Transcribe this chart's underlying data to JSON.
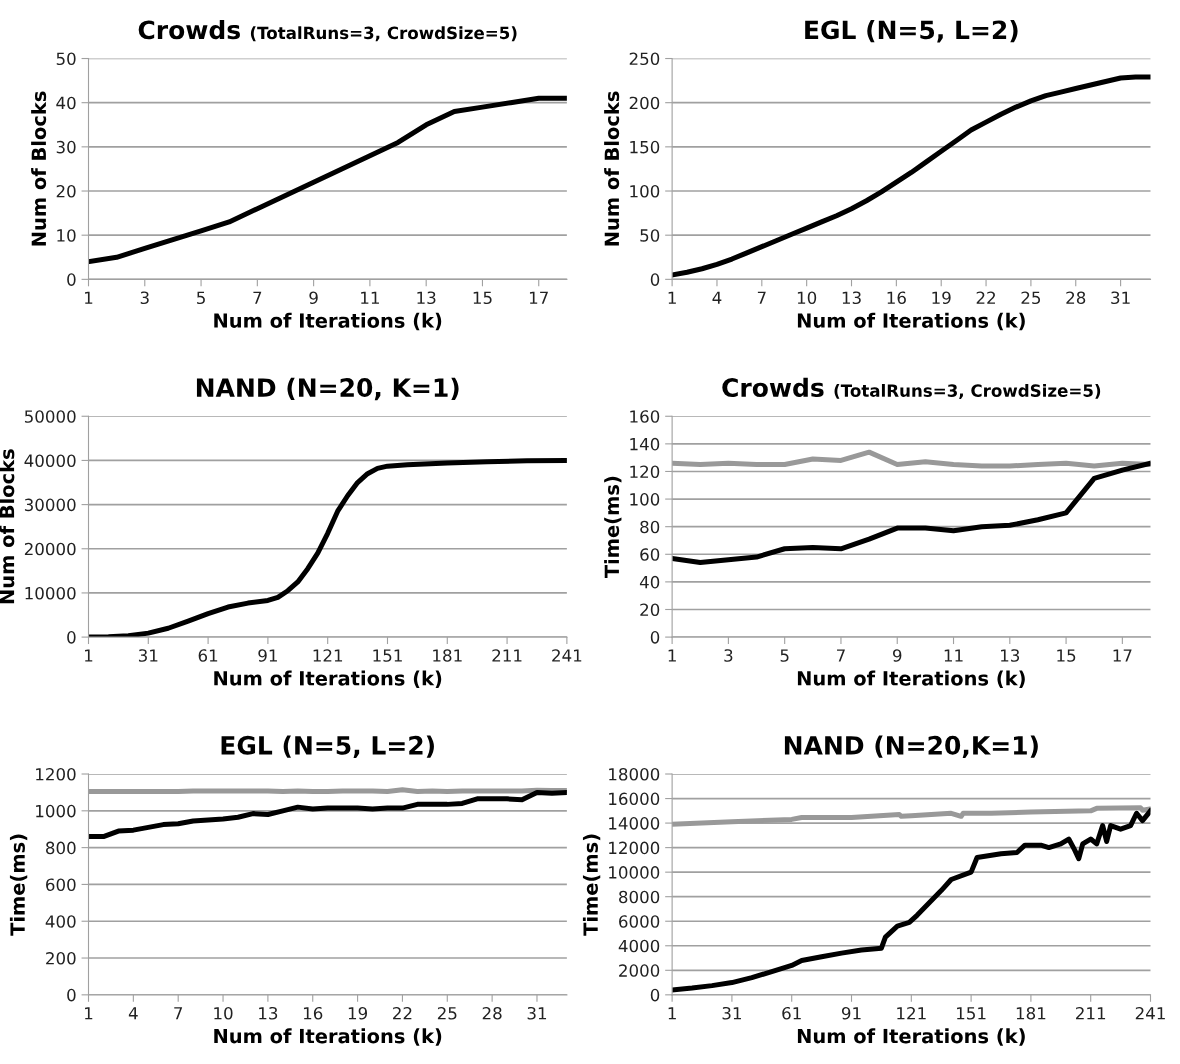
{
  "chart_data": [
    {
      "type": "line",
      "title": "Crowds",
      "subtitle": "(TotalRuns=3, CrowdSize=5)",
      "xlabel": "Num of Iterations (k)",
      "ylabel": "Num of Blocks",
      "xlim": [
        1,
        18
      ],
      "xticks": [
        1,
        3,
        5,
        7,
        9,
        11,
        13,
        15,
        17
      ],
      "ylim": [
        0,
        50
      ],
      "yticks": [
        0,
        10,
        20,
        30,
        40,
        50
      ],
      "grid": "y",
      "legend": false,
      "x": [
        1,
        2,
        3,
        4,
        5,
        6,
        7,
        8,
        9,
        10,
        11,
        12,
        13,
        14,
        15,
        16,
        17,
        18
      ],
      "series": [
        {
          "color": "#000000",
          "values": [
            4,
            5,
            7,
            9,
            11,
            13,
            16,
            19,
            22,
            25,
            28,
            31,
            35,
            38,
            39,
            40,
            41,
            41
          ]
        }
      ]
    },
    {
      "type": "line",
      "title": "EGL (N=5, L=2)",
      "xlabel": "Num of Iterations (k)",
      "ylabel": "Num of Blocks",
      "xlim": [
        1,
        33
      ],
      "xticks": [
        1,
        4,
        7,
        10,
        13,
        16,
        19,
        22,
        25,
        28,
        31
      ],
      "ylim": [
        0,
        250
      ],
      "yticks": [
        0,
        50,
        100,
        150,
        200,
        250
      ],
      "grid": "y",
      "legend": false,
      "x": [
        1,
        2,
        3,
        4,
        5,
        6,
        7,
        8,
        9,
        10,
        11,
        12,
        13,
        14,
        15,
        16,
        17,
        18,
        19,
        20,
        21,
        22,
        23,
        24,
        25,
        26,
        27,
        28,
        29,
        30,
        31,
        32,
        33
      ],
      "series": [
        {
          "color": "#000000",
          "values": [
            5,
            8,
            12,
            17,
            23,
            30,
            37,
            44,
            51,
            58,
            65,
            72,
            80,
            89,
            99,
            110,
            121,
            133,
            145,
            157,
            169,
            178,
            187,
            195,
            202,
            208,
            212,
            216,
            220,
            224,
            228,
            229,
            229
          ]
        }
      ]
    },
    {
      "type": "line",
      "title": "NAND (N=20, K=1)",
      "xlabel": "Num of Iterations (k)",
      "ylabel": "Num of Blocks",
      "xlim": [
        1,
        241
      ],
      "xticks": [
        1,
        31,
        61,
        91,
        121,
        151,
        181,
        211,
        241
      ],
      "ylim": [
        0,
        50000
      ],
      "yticks": [
        0,
        10000,
        20000,
        30000,
        40000,
        50000
      ],
      "grid": "y",
      "legend": false,
      "series": [
        {
          "color": "#000000",
          "x": [
            1,
            11,
            21,
            31,
            41,
            51,
            61,
            71,
            81,
            91,
            96,
            101,
            106,
            111,
            116,
            121,
            126,
            131,
            136,
            141,
            146,
            151,
            161,
            181,
            201,
            221,
            241
          ],
          "values": [
            0,
            100,
            300,
            900,
            2000,
            3600,
            5300,
            6800,
            7700,
            8300,
            9000,
            10500,
            12500,
            15500,
            19000,
            23500,
            28500,
            32000,
            35000,
            37000,
            38200,
            38700,
            39000,
            39400,
            39700,
            39900,
            40000
          ]
        }
      ]
    },
    {
      "type": "line",
      "title": "Crowds",
      "subtitle": "(TotalRuns=3, CrowdSize=5)",
      "xlabel": "Num of Iterations (k)",
      "ylabel": "Time(ms)",
      "xlim": [
        1,
        18
      ],
      "xticks": [
        1,
        3,
        5,
        7,
        9,
        11,
        13,
        15,
        17
      ],
      "ylim": [
        0,
        160
      ],
      "yticks": [
        0,
        20,
        40,
        60,
        80,
        100,
        120,
        140,
        160
      ],
      "grid": "y",
      "legend": false,
      "x": [
        1,
        2,
        3,
        4,
        5,
        6,
        7,
        8,
        9,
        10,
        11,
        12,
        13,
        14,
        15,
        16,
        17,
        18
      ],
      "series": [
        {
          "color": "#999999",
          "values": [
            126,
            125,
            126,
            125,
            125,
            129,
            128,
            134,
            125,
            127,
            125,
            124,
            124,
            125,
            126,
            124,
            126,
            125
          ]
        },
        {
          "color": "#000000",
          "values": [
            57,
            54,
            56,
            58,
            64,
            65,
            64,
            71,
            79,
            79,
            77,
            80,
            81,
            85,
            90,
            115,
            121,
            126
          ]
        }
      ]
    },
    {
      "type": "line",
      "title": "EGL (N=5, L=2)",
      "xlabel": "Num of Iterations (k)",
      "ylabel": "Time(ms)",
      "xlim": [
        1,
        33
      ],
      "xticks": [
        1,
        4,
        7,
        10,
        13,
        16,
        19,
        22,
        25,
        28,
        31
      ],
      "ylim": [
        0,
        1200
      ],
      "yticks": [
        0,
        200,
        400,
        600,
        800,
        1000,
        1200
      ],
      "grid": "y",
      "legend": false,
      "x": [
        1,
        2,
        3,
        4,
        5,
        6,
        7,
        8,
        9,
        10,
        11,
        12,
        13,
        14,
        15,
        16,
        17,
        18,
        19,
        20,
        21,
        22,
        23,
        24,
        25,
        26,
        27,
        28,
        29,
        30,
        31,
        32,
        33
      ],
      "series": [
        {
          "color": "#999999",
          "values": [
            1105,
            1105,
            1105,
            1105,
            1105,
            1105,
            1105,
            1108,
            1108,
            1108,
            1108,
            1108,
            1108,
            1105,
            1108,
            1105,
            1105,
            1108,
            1108,
            1108,
            1105,
            1115,
            1105,
            1108,
            1105,
            1108,
            1108,
            1108,
            1108,
            1108,
            1112,
            1110,
            1110
          ]
        },
        {
          "color": "#000000",
          "values": [
            860,
            860,
            890,
            895,
            910,
            925,
            930,
            945,
            950,
            955,
            965,
            985,
            980,
            1000,
            1020,
            1010,
            1015,
            1015,
            1015,
            1010,
            1015,
            1015,
            1035,
            1035,
            1035,
            1040,
            1065,
            1065,
            1065,
            1060,
            1100,
            1095,
            1100
          ]
        }
      ]
    },
    {
      "type": "line",
      "title": "NAND (N=20,K=1)",
      "xlabel": "Num of Iterations (k)",
      "ylabel": "Time(ms)",
      "xlim": [
        1,
        241
      ],
      "xticks": [
        1,
        31,
        61,
        91,
        121,
        151,
        181,
        211,
        241
      ],
      "ylim": [
        0,
        18000
      ],
      "yticks": [
        0,
        2000,
        4000,
        6000,
        8000,
        10000,
        12000,
        14000,
        16000,
        18000
      ],
      "grid": "y",
      "legend": false,
      "series": [
        {
          "color": "#999999",
          "x": [
            1,
            31,
            61,
            66,
            91,
            115,
            116,
            121,
            141,
            146,
            147,
            161,
            181,
            211,
            214,
            236,
            237,
            241
          ],
          "values": [
            13900,
            14100,
            14300,
            14450,
            14450,
            14700,
            14550,
            14600,
            14800,
            14550,
            14800,
            14800,
            14900,
            15000,
            15200,
            15250,
            15050,
            15150
          ]
        },
        {
          "color": "#000000",
          "x": [
            1,
            11,
            21,
            31,
            41,
            51,
            61,
            66,
            76,
            86,
            96,
            106,
            108,
            114,
            120,
            124,
            130,
            136,
            141,
            151,
            154,
            166,
            174,
            178,
            186,
            190,
            196,
            200,
            203,
            205,
            207,
            211,
            214,
            217,
            219,
            221,
            226,
            231,
            234,
            237,
            241
          ],
          "values": [
            400,
            550,
            750,
            1000,
            1400,
            1900,
            2400,
            2800,
            3100,
            3400,
            3650,
            3800,
            4700,
            5600,
            5900,
            6500,
            7500,
            8500,
            9400,
            10000,
            11200,
            11500,
            11600,
            12200,
            12200,
            12000,
            12300,
            12700,
            11800,
            11100,
            12300,
            12700,
            12300,
            13800,
            12500,
            13800,
            13500,
            13800,
            14800,
            14200,
            15000
          ]
        }
      ]
    }
  ]
}
